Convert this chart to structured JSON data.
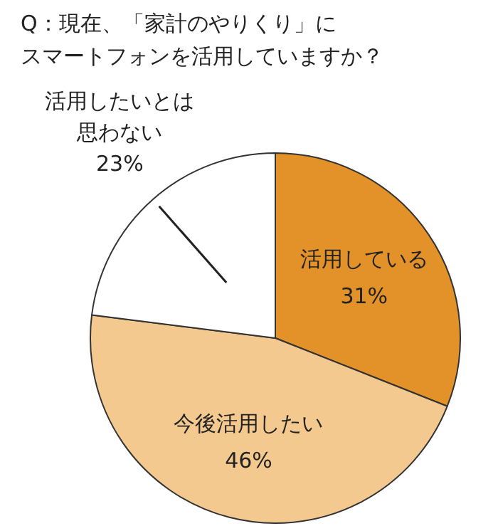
{
  "chart_data": {
    "type": "pie",
    "title": "Q：現在、「家計のやりくり」にスマートフォンを活用していますか？",
    "categories": [
      "活用している",
      "今後活用したい",
      "活用したいとは思わない"
    ],
    "values": [
      31,
      46,
      23
    ],
    "value_labels": [
      "31%",
      "46%",
      "23%"
    ],
    "colors": [
      "#e3922a",
      "#f4c990",
      "#ffffff"
    ]
  }
}
